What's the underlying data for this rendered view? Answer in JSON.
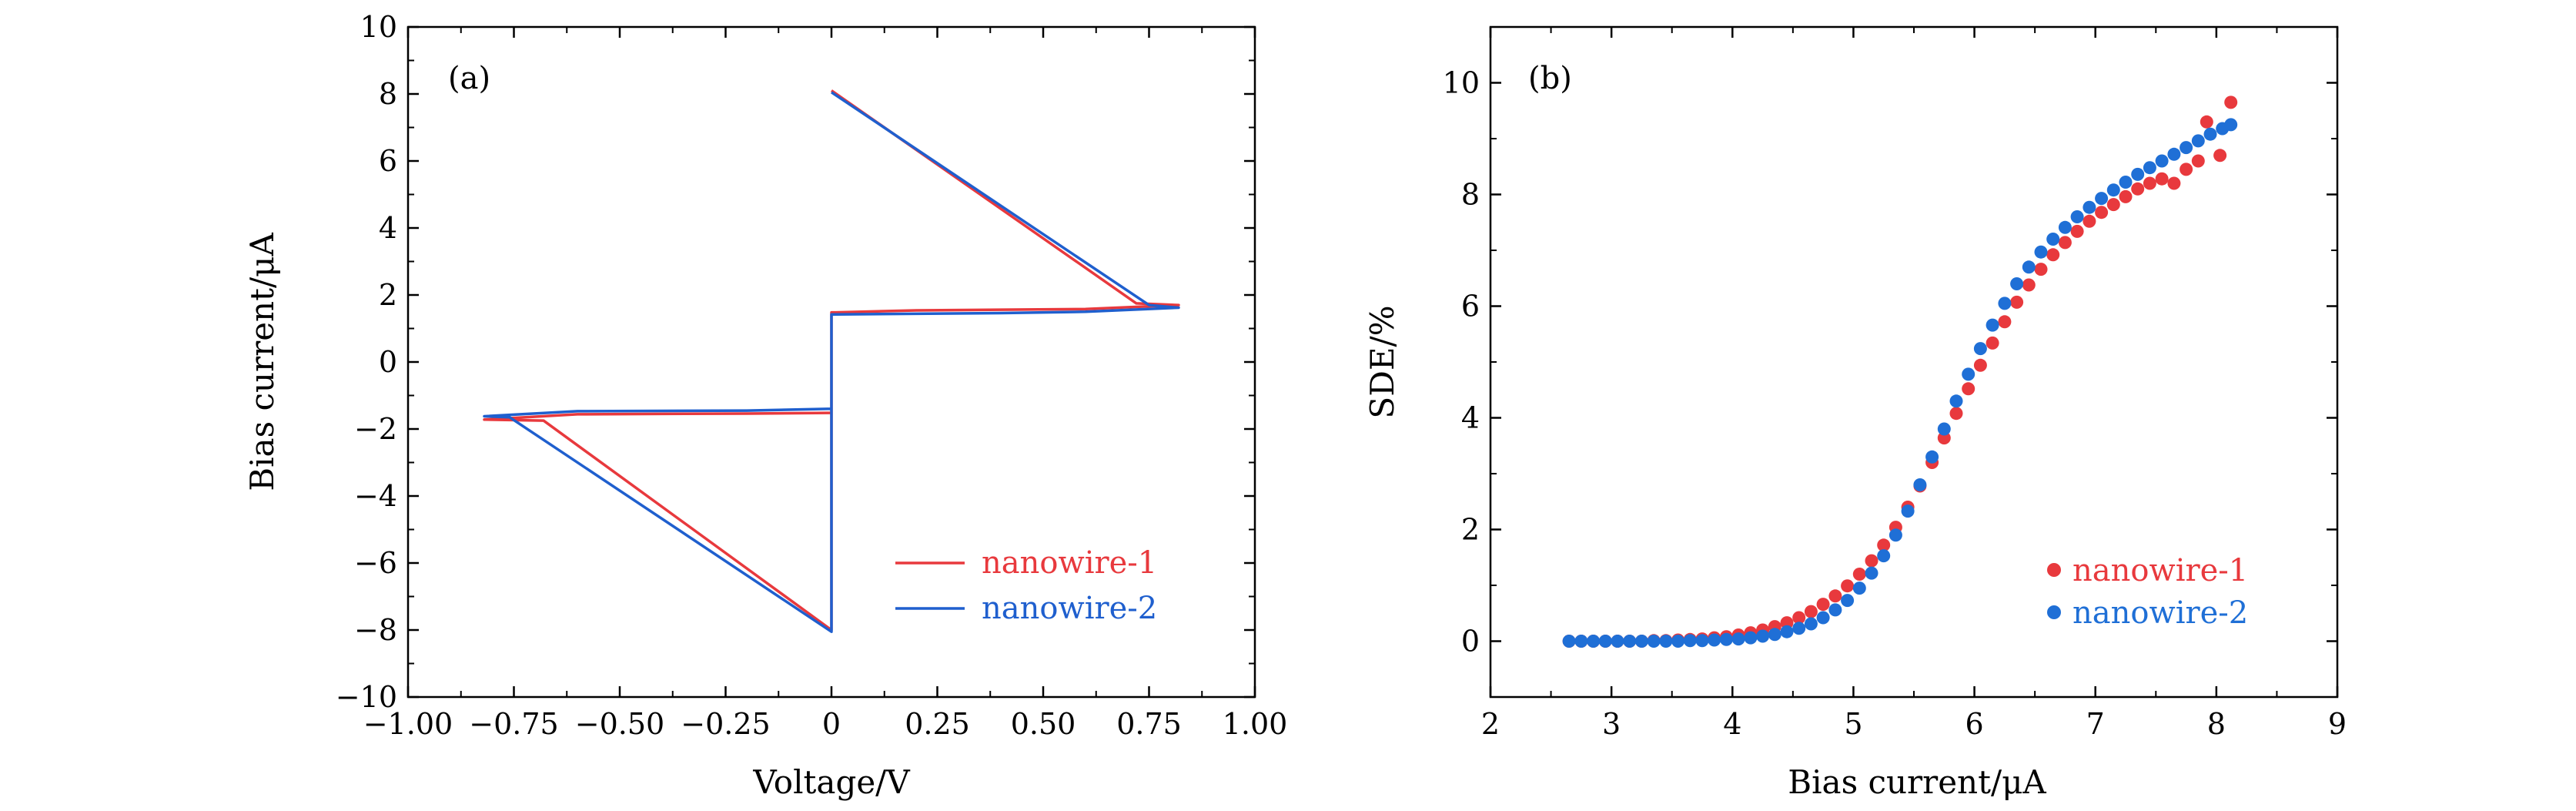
{
  "chart_data": [
    {
      "type": "line",
      "panel_label": "(a)",
      "xlabel": "Voltage/V",
      "ylabel": "Bias current/μA",
      "xlim": [
        -1.0,
        1.0
      ],
      "ylim": [
        -10,
        10
      ],
      "x_ticks": [
        {
          "value": -1.0,
          "label": "−1.00"
        },
        {
          "value": -0.75,
          "label": "−0.75"
        },
        {
          "value": -0.5,
          "label": "−0.50"
        },
        {
          "value": -0.25,
          "label": "−0.25"
        },
        {
          "value": 0,
          "label": "0"
        },
        {
          "value": 0.25,
          "label": "0.25"
        },
        {
          "value": 0.5,
          "label": "0.50"
        },
        {
          "value": 0.75,
          "label": "0.75"
        },
        {
          "value": 1.0,
          "label": "1.00"
        }
      ],
      "y_ticks": [
        {
          "value": 10,
          "label": "10"
        },
        {
          "value": 8,
          "label": "8"
        },
        {
          "value": 6,
          "label": "6"
        },
        {
          "value": 4,
          "label": "4"
        },
        {
          "value": 2,
          "label": "2"
        },
        {
          "value": 0,
          "label": "0"
        },
        {
          "value": -2,
          "label": "−2"
        },
        {
          "value": -4,
          "label": "−4"
        },
        {
          "value": -6,
          "label": "−6"
        },
        {
          "value": -8,
          "label": "−8"
        },
        {
          "value": -10,
          "label": "−10"
        }
      ],
      "legend_position": "bottom-right",
      "series": [
        {
          "name": "nanowire-1",
          "color": "#e8393d",
          "points": [
            [
              0,
              8.1
            ],
            [
              0.72,
              1.75
            ],
            [
              0.82,
              1.7
            ],
            [
              0.6,
              1.58
            ],
            [
              0.4,
              1.56
            ],
            [
              0.2,
              1.54
            ],
            [
              0.01,
              1.48
            ],
            [
              0,
              1.48
            ],
            [
              0,
              -8.0
            ],
            [
              -0.68,
              -1.75
            ],
            [
              -0.82,
              -1.72
            ],
            [
              -0.6,
              -1.56
            ],
            [
              -0.4,
              -1.55
            ],
            [
              -0.2,
              -1.54
            ],
            [
              -0.01,
              -1.52
            ],
            [
              0,
              -1.52
            ]
          ]
        },
        {
          "name": "nanowire-2",
          "color": "#1f5fce",
          "points": [
            [
              0,
              8.05
            ],
            [
              0.75,
              1.7
            ],
            [
              0.82,
              1.62
            ],
            [
              0.6,
              1.5
            ],
            [
              0.4,
              1.46
            ],
            [
              0.2,
              1.44
            ],
            [
              0.01,
              1.42
            ],
            [
              0,
              1.42
            ],
            [
              0,
              -8.05
            ],
            [
              -0.76,
              -1.65
            ],
            [
              -0.82,
              -1.62
            ],
            [
              -0.6,
              -1.47
            ],
            [
              -0.4,
              -1.46
            ],
            [
              -0.2,
              -1.45
            ],
            [
              -0.01,
              -1.4
            ],
            [
              0,
              -1.4
            ]
          ]
        }
      ]
    },
    {
      "type": "scatter",
      "panel_label": "(b)",
      "xlabel": "Bias current/μA",
      "ylabel": "SDE/%",
      "xlim": [
        2,
        9
      ],
      "ylim": [
        -1,
        11
      ],
      "x_ticks": [
        {
          "value": 2,
          "label": "2"
        },
        {
          "value": 3,
          "label": "3"
        },
        {
          "value": 4,
          "label": "4"
        },
        {
          "value": 5,
          "label": "5"
        },
        {
          "value": 6,
          "label": "6"
        },
        {
          "value": 7,
          "label": "7"
        },
        {
          "value": 8,
          "label": "8"
        },
        {
          "value": 9,
          "label": "9"
        }
      ],
      "y_ticks": [
        {
          "value": 0,
          "label": "0"
        },
        {
          "value": 2,
          "label": "2"
        },
        {
          "value": 4,
          "label": "4"
        },
        {
          "value": 6,
          "label": "6"
        },
        {
          "value": 8,
          "label": "8"
        },
        {
          "value": 10,
          "label": "10"
        }
      ],
      "legend_position": "bottom-right",
      "series": [
        {
          "name": "nanowire-1",
          "color": "#e8393d",
          "x": [
            2.65,
            2.75,
            2.85,
            2.95,
            3.05,
            3.15,
            3.25,
            3.35,
            3.45,
            3.55,
            3.65,
            3.75,
            3.85,
            3.95,
            4.05,
            4.15,
            4.25,
            4.35,
            4.45,
            4.55,
            4.65,
            4.75,
            4.85,
            4.95,
            5.05,
            5.15,
            5.25,
            5.35,
            5.45,
            5.55,
            5.65,
            5.75,
            5.85,
            5.95,
            6.05,
            6.15,
            6.25,
            6.35,
            6.45,
            6.55,
            6.65,
            6.75,
            6.85,
            6.95,
            7.05,
            7.15,
            7.25,
            7.35,
            7.45,
            7.55,
            7.65,
            7.75,
            7.85,
            7.92,
            8.03,
            8.12
          ],
          "y": [
            0,
            0,
            0,
            0,
            0,
            0,
            0,
            0.01,
            0.01,
            0.02,
            0.03,
            0.04,
            0.06,
            0.08,
            0.11,
            0.15,
            0.2,
            0.26,
            0.33,
            0.42,
            0.53,
            0.66,
            0.81,
            0.99,
            1.2,
            1.44,
            1.72,
            2.04,
            2.4,
            2.78,
            3.2,
            3.64,
            4.08,
            4.52,
            4.94,
            5.34,
            5.72,
            6.07,
            6.38,
            6.66,
            6.92,
            7.14,
            7.34,
            7.52,
            7.68,
            7.82,
            7.96,
            8.1,
            8.2,
            8.28,
            8.2,
            8.45,
            8.6,
            9.3,
            8.7,
            9.65
          ]
        },
        {
          "name": "nanowire-2",
          "color": "#1f6fd6",
          "x": [
            2.65,
            2.75,
            2.85,
            2.95,
            3.05,
            3.15,
            3.25,
            3.35,
            3.45,
            3.55,
            3.65,
            3.75,
            3.85,
            3.95,
            4.05,
            4.15,
            4.25,
            4.35,
            4.45,
            4.55,
            4.65,
            4.75,
            4.85,
            4.95,
            5.05,
            5.15,
            5.25,
            5.35,
            5.45,
            5.55,
            5.65,
            5.75,
            5.85,
            5.95,
            6.05,
            6.15,
            6.25,
            6.35,
            6.45,
            6.55,
            6.65,
            6.75,
            6.85,
            6.95,
            7.05,
            7.15,
            7.25,
            7.35,
            7.45,
            7.55,
            7.65,
            7.75,
            7.85,
            7.95,
            8.05,
            8.12
          ],
          "y": [
            0,
            0,
            0,
            0,
            0,
            0,
            0,
            0,
            0,
            0,
            0.01,
            0.01,
            0.02,
            0.03,
            0.04,
            0.06,
            0.09,
            0.12,
            0.17,
            0.23,
            0.31,
            0.42,
            0.56,
            0.73,
            0.95,
            1.22,
            1.53,
            1.9,
            2.33,
            2.8,
            3.3,
            3.8,
            4.3,
            4.78,
            5.24,
            5.66,
            6.05,
            6.4,
            6.7,
            6.97,
            7.2,
            7.41,
            7.6,
            7.77,
            7.93,
            8.08,
            8.22,
            8.36,
            8.48,
            8.6,
            8.72,
            8.84,
            8.96,
            9.08,
            9.18,
            9.25
          ]
        }
      ]
    }
  ]
}
